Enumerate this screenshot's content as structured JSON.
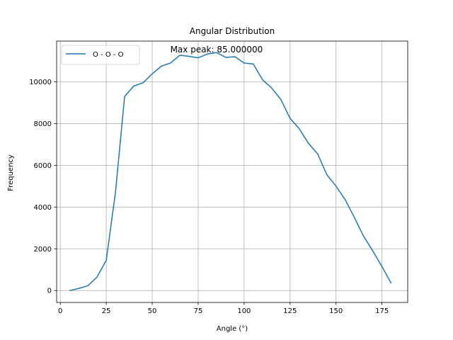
{
  "chart_data": {
    "type": "line",
    "title": "Angular Distribution",
    "xlabel": "Angle (°)",
    "ylabel": "Frequency",
    "xlim": [
      -2,
      189
    ],
    "ylim": [
      -570,
      11950
    ],
    "xticks": [
      0,
      25,
      50,
      75,
      100,
      125,
      150,
      175
    ],
    "yticks": [
      0,
      2000,
      4000,
      6000,
      8000,
      10000
    ],
    "grid": true,
    "legend_position": "top-left",
    "annotation": {
      "text": "Max peak: 85.000000",
      "x": 85,
      "y": 11400
    },
    "series": [
      {
        "name": "O - O - O",
        "color": "#1f77b4",
        "x": [
          5,
          10,
          15,
          20,
          25,
          30,
          35,
          40,
          45,
          50,
          55,
          60,
          65,
          70,
          75,
          80,
          85,
          90,
          95,
          100,
          105,
          110,
          115,
          120,
          125,
          130,
          135,
          140,
          145,
          150,
          155,
          160,
          165,
          170,
          175,
          180
        ],
        "y": [
          0,
          100,
          230,
          650,
          1450,
          4700,
          9300,
          9800,
          9950,
          10380,
          10750,
          10900,
          11270,
          11220,
          11150,
          11330,
          11400,
          11170,
          11200,
          10900,
          10850,
          10100,
          9700,
          9150,
          8250,
          7750,
          7050,
          6550,
          5550,
          5000,
          4350,
          3500,
          2600,
          1900,
          1150,
          350
        ]
      }
    ]
  }
}
